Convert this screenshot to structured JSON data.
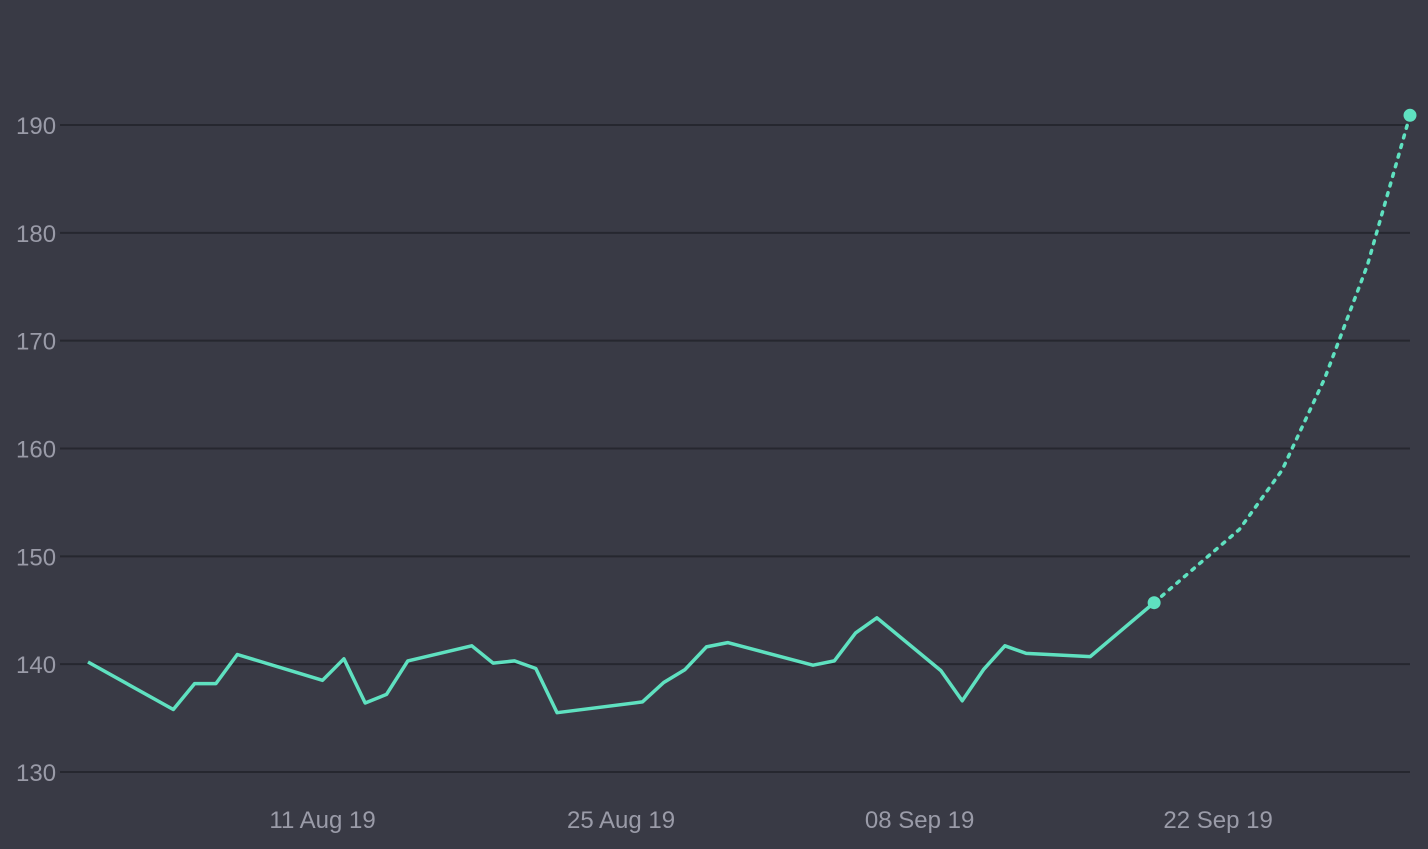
{
  "chart_data": {
    "type": "line",
    "title": "",
    "xlabel": "",
    "ylabel": "",
    "ylim": [
      130,
      190
    ],
    "xlim": [
      "2019-07-31",
      "2019-10-01"
    ],
    "yticks": [
      130,
      140,
      150,
      160,
      170,
      180,
      190
    ],
    "xticks": [
      {
        "date": "2019-08-11",
        "label": "11 Aug 19"
      },
      {
        "date": "2019-08-25",
        "label": "25 Aug 19"
      },
      {
        "date": "2019-09-08",
        "label": "08 Sep 19"
      },
      {
        "date": "2019-09-22",
        "label": "22 Sep 19"
      }
    ],
    "grid": true,
    "legend": "none",
    "series": [
      {
        "style": "solid",
        "color": "#5fe1c0",
        "points": [
          [
            "2019-07-31",
            140.2
          ],
          [
            "2019-08-04",
            135.8
          ],
          [
            "2019-08-05",
            138.2
          ],
          [
            "2019-08-06",
            138.2
          ],
          [
            "2019-08-07",
            140.9
          ],
          [
            "2019-08-11",
            138.5
          ],
          [
            "2019-08-12",
            140.5
          ],
          [
            "2019-08-13",
            136.4
          ],
          [
            "2019-08-14",
            137.2
          ],
          [
            "2019-08-15",
            140.3
          ],
          [
            "2019-08-18",
            141.7
          ],
          [
            "2019-08-19",
            140.1
          ],
          [
            "2019-08-20",
            140.3
          ],
          [
            "2019-08-21",
            139.6
          ],
          [
            "2019-08-22",
            135.5
          ],
          [
            "2019-08-26",
            136.5
          ],
          [
            "2019-08-27",
            138.3
          ],
          [
            "2019-08-28",
            139.5
          ],
          [
            "2019-08-29",
            141.6
          ],
          [
            "2019-08-30",
            142.0
          ],
          [
            "2019-09-03",
            139.9
          ],
          [
            "2019-09-04",
            140.3
          ],
          [
            "2019-09-05",
            142.9
          ],
          [
            "2019-09-06",
            144.3
          ],
          [
            "2019-09-09",
            139.4
          ],
          [
            "2019-09-10",
            136.6
          ],
          [
            "2019-09-11",
            139.5
          ],
          [
            "2019-09-12",
            141.7
          ],
          [
            "2019-09-13",
            141.0
          ],
          [
            "2019-09-16",
            140.7
          ],
          [
            "2019-09-19",
            145.7
          ]
        ]
      },
      {
        "style": "dotted",
        "color": "#5fe1c0",
        "points": [
          [
            "2019-09-19",
            145.7
          ],
          [
            "2019-09-23",
            152.5
          ],
          [
            "2019-09-25",
            158.0
          ],
          [
            "2019-09-27",
            166.5
          ],
          [
            "2019-09-29",
            177.0
          ],
          [
            "2019-10-01",
            190.9
          ]
        ]
      }
    ],
    "markers": [
      {
        "date": "2019-09-19",
        "value": 145.7
      },
      {
        "date": "2019-10-01",
        "value": 190.9
      }
    ]
  }
}
